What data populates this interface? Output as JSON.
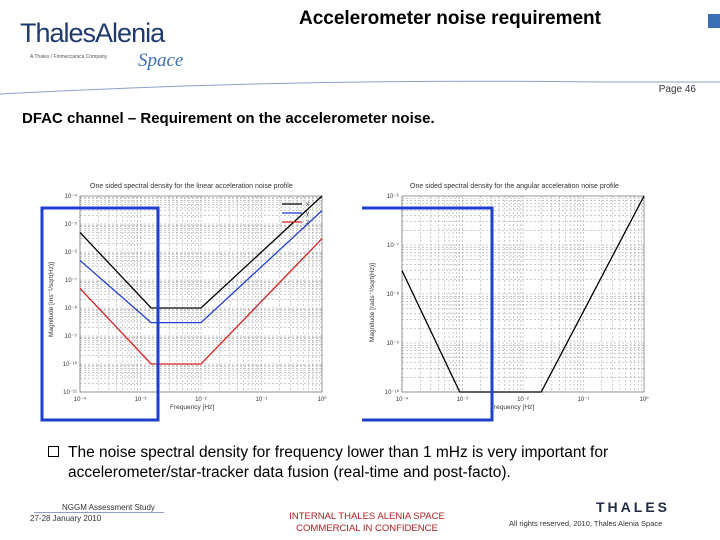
{
  "header": {
    "logo_main": "ThalesAlenia",
    "logo_tagline": "A Thales / Finmeccanica Company",
    "logo_space": "Space",
    "title": "Accelerometer noise requirement",
    "page_number": "Page 46"
  },
  "section_title": "DFAC channel – Requirement on the accelerometer noise.",
  "charts": {
    "left": {
      "title": "One sided spectral density for the linear acceleration noise profile",
      "ylabel": "Magnitude [ms⁻²/sqrt(Hz)]",
      "xlabel": "Frequency   [Hz]",
      "yticks": [
        "10⁻⁴",
        "10⁻⁵",
        "10⁻⁶",
        "10⁻⁷",
        "10⁻⁸",
        "10⁻⁹",
        "10⁻¹⁰",
        "10⁻¹¹"
      ],
      "xticks": [
        "10⁻⁴",
        "10⁻³",
        "10⁻²",
        "10⁻¹",
        "10⁰"
      ],
      "legend": [
        "x",
        "y",
        "z"
      ]
    },
    "right": {
      "title": "One sided spectral density for the angular acceleration noise profile",
      "ylabel": "Magnitude [rads⁻²/sqrt(Hz)]",
      "xlabel": "Frequency   [Hz]",
      "yticks": [
        "10⁻⁶",
        "10⁻⁷",
        "10⁻⁸",
        "10⁻⁹",
        "10⁻¹⁰"
      ],
      "xticks": [
        "10⁻⁴",
        "10⁻³",
        "10⁻²",
        "10⁻¹",
        "10⁰"
      ]
    }
  },
  "chart_data": [
    {
      "type": "line",
      "title": "One sided spectral density for the linear acceleration noise profile",
      "xlabel": "Frequency [Hz]",
      "ylabel": "Magnitude [ms⁻²/sqrt(Hz)]",
      "xscale": "log",
      "yscale": "log",
      "xlim": [
        0.0001,
        1
      ],
      "ylim": [
        1e-11,
        0.0001
      ],
      "series": [
        {
          "name": "x",
          "color": "#000000",
          "x": [
            0.0001,
            0.0015,
            0.01,
            1
          ],
          "y": [
            5e-06,
            1e-08,
            1e-08,
            0.0001
          ]
        },
        {
          "name": "y",
          "color": "#1f3fcf",
          "x": [
            0.0001,
            0.0015,
            0.01,
            1
          ],
          "y": [
            5e-07,
            3e-09,
            3e-09,
            3e-05
          ]
        },
        {
          "name": "z",
          "color": "#d42020",
          "x": [
            0.0001,
            0.0015,
            0.01,
            1
          ],
          "y": [
            5e-08,
            1e-10,
            1e-10,
            3e-06
          ]
        }
      ]
    },
    {
      "type": "line",
      "title": "One sided spectral density for the angular acceleration noise profile",
      "xlabel": "Frequency [Hz]",
      "ylabel": "Magnitude [rads⁻²/sqrt(Hz)]",
      "xscale": "log",
      "yscale": "log",
      "xlim": [
        0.0001,
        1
      ],
      "ylim": [
        1e-10,
        1e-06
      ],
      "series": [
        {
          "color": "#000000",
          "x": [
            0.0001,
            0.0009,
            0.0015,
            0.02,
            1
          ],
          "y": [
            3e-08,
            1e-10,
            1e-10,
            1e-10,
            1e-06
          ]
        }
      ]
    }
  ],
  "bullet": "The noise spectral density for frequency lower than 1 mHz is very important for accelerometer/star-tracker data fusion (real-time and post-facto).",
  "footer": {
    "study": "NGGM Assessment Study",
    "date": "27-28 January 2010",
    "internal_line1": "INTERNAL THALES ALENIA SPACE",
    "internal_line2": "COMMERCIAL IN CONFIDENCE",
    "thales": "THALES",
    "rights": "All rights reserved, 2010, Thales Alenia Space"
  },
  "colors": {
    "brand_blue": "#1f3a6e",
    "accent_blue": "#3d6fb6",
    "highlight_box": "#1f3fcf",
    "confidential_red": "#b02020"
  }
}
